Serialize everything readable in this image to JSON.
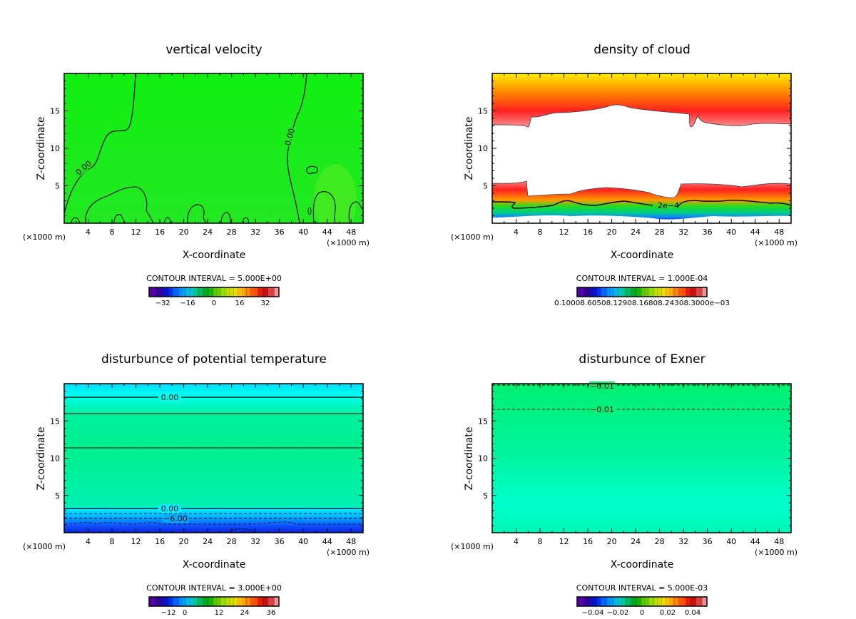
{
  "chart_data": [
    {
      "type": "heatmap",
      "title": "vertical velocity",
      "xlabel": "X-coordinate",
      "ylabel": "Z-coordinate",
      "x_unit_left": "(×1000 m)",
      "x_unit_right": "(×1000 m)",
      "xlim": [
        0,
        50
      ],
      "ylim": [
        0,
        20
      ],
      "xticks": [
        "4",
        "8",
        "12",
        "16",
        "20",
        "24",
        "28",
        "32",
        "36",
        "40",
        "44",
        "48"
      ],
      "yticks": [
        "5",
        "10",
        "15"
      ],
      "contour_interval": "CONTOUR INTERVAL = 5.000E+00",
      "colorbar_labels": [
        "−32",
        "−16",
        "0",
        "16",
        "32"
      ],
      "contour_labels": [
        "0.00",
        "0.00"
      ],
      "field": "green"
    },
    {
      "type": "heatmap",
      "title": "density of cloud",
      "xlabel": "X-coordinate",
      "ylabel": "Z-coordinate",
      "x_unit_left": "(×1000 m)",
      "x_unit_right": "(×1000 m)",
      "xlim": [
        0,
        50
      ],
      "ylim": [
        0,
        20
      ],
      "xticks": [
        "4",
        "8",
        "12",
        "16",
        "20",
        "24",
        "28",
        "32",
        "36",
        "40",
        "44",
        "48"
      ],
      "yticks": [
        "5",
        "10",
        "15"
      ],
      "contour_interval": "CONTOUR INTERVAL = 1.000E-04",
      "colorbar_labels_text": "0.10008.60508.12908.16808.24308.3000e−03",
      "contour_labels": [
        "2e−4"
      ],
      "field": "cloud"
    },
    {
      "type": "heatmap",
      "title": "disturbunce of potential temperature",
      "xlabel": "X-coordinate",
      "ylabel": "Z-coordinate",
      "x_unit_left": "(×1000 m)",
      "x_unit_right": "(×1000 m)",
      "xlim": [
        0,
        50
      ],
      "ylim": [
        0,
        20
      ],
      "xticks": [
        "4",
        "8",
        "12",
        "16",
        "20",
        "24",
        "28",
        "32",
        "36",
        "40",
        "44",
        "48"
      ],
      "yticks": [
        "5",
        "10",
        "15"
      ],
      "contour_interval": "CONTOUR INTERVAL = 3.000E+00",
      "colorbar_labels": [
        "−12",
        "0",
        "12",
        "24",
        "36"
      ],
      "contour_labels": [
        "0.00",
        "0.00",
        "−6.00"
      ],
      "field": "theta"
    },
    {
      "type": "heatmap",
      "title": "disturbunce of Exner",
      "xlabel": "X-coordinate",
      "ylabel": "Z-coordinate",
      "x_unit_left": "(×1000 m)",
      "x_unit_right": "(×1000 m)",
      "xlim": [
        0,
        50
      ],
      "ylim": [
        0,
        20
      ],
      "xticks": [
        "4",
        "8",
        "12",
        "16",
        "20",
        "24",
        "28",
        "32",
        "36",
        "40",
        "44",
        "48"
      ],
      "yticks": [
        "5",
        "10",
        "15"
      ],
      "contour_interval": "CONTOUR INTERVAL = 5.000E-03",
      "colorbar_labels": [
        "−0.04",
        "−0.02",
        "0",
        "0.02",
        "0.04"
      ],
      "contour_labels": [
        "−0.01",
        "−0.01"
      ],
      "field": "exner"
    }
  ]
}
